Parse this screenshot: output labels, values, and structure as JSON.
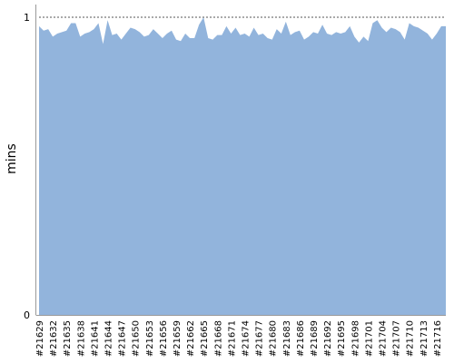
{
  "chart_data": {
    "type": "area",
    "title": "",
    "xlabel": "",
    "ylabel": "mins",
    "ylim": [
      0,
      1
    ],
    "y_ticks": [
      "0",
      "1"
    ],
    "fill_color": "#92b4dc",
    "reference_line": {
      "value": 1,
      "style": "dotted",
      "color": "#555555"
    },
    "x": [
      21629,
      21630,
      21631,
      21632,
      21633,
      21634,
      21635,
      21636,
      21637,
      21638,
      21639,
      21640,
      21641,
      21642,
      21643,
      21644,
      21645,
      21646,
      21647,
      21648,
      21649,
      21650,
      21651,
      21652,
      21653,
      21654,
      21655,
      21656,
      21657,
      21658,
      21659,
      21660,
      21661,
      21662,
      21663,
      21664,
      21665,
      21666,
      21667,
      21668,
      21669,
      21670,
      21671,
      21672,
      21673,
      21674,
      21675,
      21676,
      21677,
      21678,
      21679,
      21680,
      21681,
      21682,
      21683,
      21684,
      21685,
      21686,
      21687,
      21688,
      21689,
      21690,
      21691,
      21692,
      21693,
      21694,
      21695,
      21696,
      21697,
      21698,
      21699,
      21700,
      21701,
      21702,
      21703,
      21704,
      21705,
      21706,
      21707,
      21708,
      21709,
      21710,
      21711,
      21712,
      21713,
      21714,
      21715,
      21716,
      21717,
      21718
    ],
    "x_tick_labels": [
      "#21629",
      "#21632",
      "#21635",
      "#21638",
      "#21641",
      "#21644",
      "#21647",
      "#21650",
      "#21653",
      "#21656",
      "#21659",
      "#21662",
      "#21665",
      "#21668",
      "#21671",
      "#21674",
      "#21677",
      "#21680",
      "#21683",
      "#21686",
      "#21689",
      "#21692",
      "#21695",
      "#21698",
      "#21701",
      "#21704",
      "#21707",
      "#21710",
      "#21713",
      "#21716"
    ],
    "values": [
      0.97,
      0.955,
      0.96,
      0.935,
      0.945,
      0.95,
      0.955,
      0.98,
      0.98,
      0.935,
      0.945,
      0.95,
      0.96,
      0.98,
      0.91,
      0.99,
      0.94,
      0.945,
      0.925,
      0.945,
      0.965,
      0.96,
      0.95,
      0.935,
      0.94,
      0.96,
      0.945,
      0.93,
      0.945,
      0.955,
      0.925,
      0.92,
      0.945,
      0.93,
      0.93,
      0.975,
      1.0,
      0.93,
      0.925,
      0.94,
      0.94,
      0.97,
      0.945,
      0.965,
      0.94,
      0.945,
      0.935,
      0.965,
      0.94,
      0.945,
      0.93,
      0.925,
      0.96,
      0.945,
      0.985,
      0.94,
      0.95,
      0.955,
      0.925,
      0.935,
      0.95,
      0.945,
      0.975,
      0.945,
      0.94,
      0.95,
      0.945,
      0.95,
      0.97,
      0.935,
      0.915,
      0.935,
      0.92,
      0.98,
      0.99,
      0.965,
      0.95,
      0.965,
      0.96,
      0.95,
      0.925,
      0.98,
      0.97,
      0.965,
      0.955,
      0.945,
      0.925,
      0.945,
      0.97,
      0.97
    ]
  }
}
